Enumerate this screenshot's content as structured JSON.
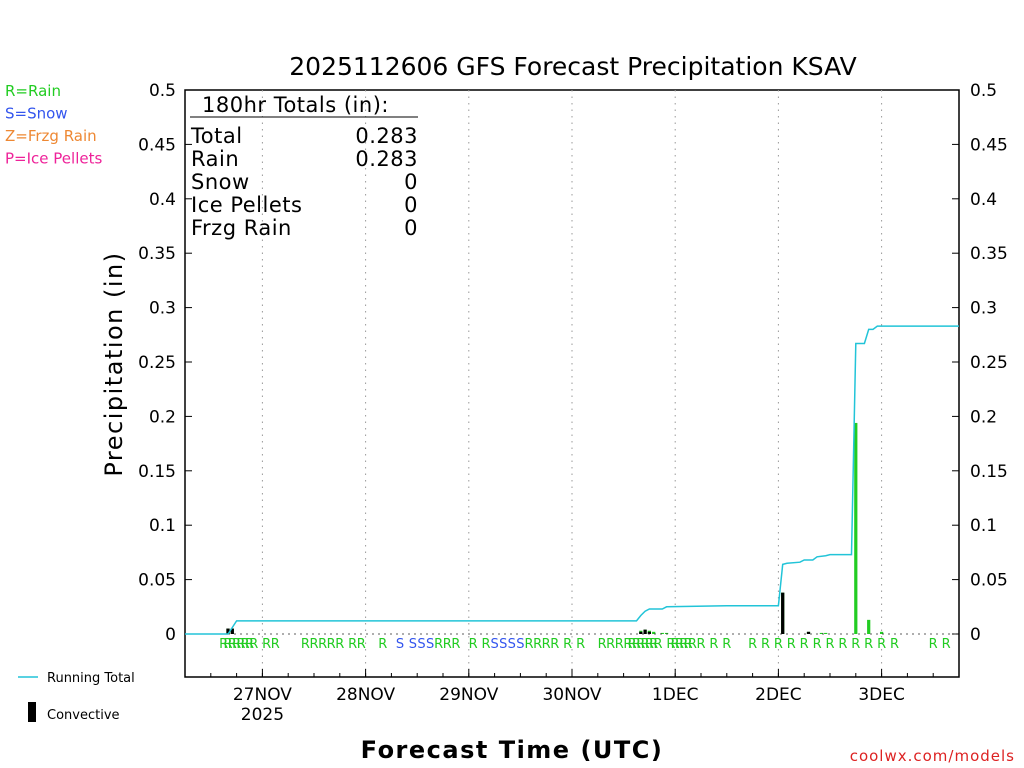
{
  "chart_data": {
    "type": "bar",
    "title": "2025112606 GFS Forecast Precipitation KSAV",
    "xlabel": "Forecast Time (UTC)",
    "ylabel": "Precipitation (in)",
    "ylim": [
      0,
      0.5
    ],
    "y_extra_below": -0.04,
    "yticks": [
      0,
      0.05,
      0.1,
      0.15,
      0.2,
      0.25,
      0.3,
      0.35,
      0.4,
      0.45,
      0.5
    ],
    "ytick_labels": [
      "0",
      "0.05",
      "0.1",
      "0.15",
      "0.2",
      "0.25",
      "0.3",
      "0.35",
      "0.4",
      "0.45",
      "0.5"
    ],
    "xlim_hours": [
      0,
      180
    ],
    "x_units": "forecast hours from 2025-11-26 06Z",
    "xticks": [
      {
        "hour": 18,
        "label": "27NOV",
        "sublabel": "2025"
      },
      {
        "hour": 42,
        "label": "28NOV"
      },
      {
        "hour": 66,
        "label": "29NOV"
      },
      {
        "hour": 90,
        "label": "30NOV"
      },
      {
        "hour": 114,
        "label": "1DEC"
      },
      {
        "hour": 138,
        "label": "2DEC"
      },
      {
        "hour": 162,
        "label": "3DEC"
      }
    ],
    "legend": {
      "precip_types": [
        {
          "label": "R=Rain",
          "color": "#22cc22"
        },
        {
          "label": "S=Snow",
          "color": "#3355ee"
        },
        {
          "label": "Z=Frzg Rain",
          "color": "#ee8833"
        },
        {
          "label": "P=Ice Pellets",
          "color": "#ee2299"
        }
      ],
      "running_total_label": "Running Total",
      "convective_label": "Convective"
    },
    "totals": {
      "header": "180hr Totals (in):",
      "rows": [
        {
          "label": "Total",
          "value": "0.283"
        },
        {
          "label": "Rain",
          "value": "0.283"
        },
        {
          "label": "Snow",
          "value": "0"
        },
        {
          "label": "Ice Pellets",
          "value": "0"
        },
        {
          "label": "Frzg Rain",
          "value": "0"
        }
      ]
    },
    "series": [
      {
        "name": "Running Total",
        "kind": "line",
        "color": "#22c4d8",
        "x": [
          0,
          10,
          11,
          12,
          105,
          106,
          107,
          108,
          111,
          112,
          126,
          138,
          139,
          140,
          143,
          144,
          146,
          147,
          149,
          150,
          155,
          156,
          158,
          159,
          160,
          161,
          180
        ],
        "y": [
          0,
          0,
          0.006,
          0.012,
          0.012,
          0.017,
          0.021,
          0.023,
          0.023,
          0.025,
          0.026,
          0.026,
          0.064,
          0.065,
          0.066,
          0.068,
          0.068,
          0.071,
          0.072,
          0.073,
          0.073,
          0.267,
          0.267,
          0.28,
          0.28,
          0.283,
          0.283
        ]
      },
      {
        "name": "Precipitation",
        "kind": "bar",
        "color": "#22cc22",
        "x": [
          10,
          11,
          106,
          107,
          108,
          109,
          111,
          112,
          139,
          145,
          148,
          149,
          156,
          159,
          162
        ],
        "y": [
          0.005,
          0.005,
          0.003,
          0.004,
          0.003,
          0.002,
          0.001,
          0.001,
          0.038,
          0.002,
          0.001,
          0.001,
          0.194,
          0.013,
          0.002
        ]
      },
      {
        "name": "Convective",
        "kind": "bar",
        "color": "#000000",
        "x": [
          10,
          11,
          106,
          107,
          108,
          139,
          145
        ],
        "y": [
          0.005,
          0.005,
          0.002,
          0.004,
          0.002,
          0.038,
          0.002
        ]
      }
    ],
    "ptype_codes": [
      {
        "hour": 9,
        "code": "R"
      },
      {
        "hour": 10,
        "code": "R"
      },
      {
        "hour": 11,
        "code": "R"
      },
      {
        "hour": 12,
        "code": "R"
      },
      {
        "hour": 13,
        "code": "R"
      },
      {
        "hour": 14,
        "code": "R"
      },
      {
        "hour": 15,
        "code": "R"
      },
      {
        "hour": 16,
        "code": "R"
      },
      {
        "hour": 19,
        "code": "R"
      },
      {
        "hour": 21,
        "code": "R"
      },
      {
        "hour": 28,
        "code": "R"
      },
      {
        "hour": 30,
        "code": "R"
      },
      {
        "hour": 32,
        "code": "R"
      },
      {
        "hour": 34,
        "code": "R"
      },
      {
        "hour": 36,
        "code": "R"
      },
      {
        "hour": 39,
        "code": "R"
      },
      {
        "hour": 41,
        "code": "R"
      },
      {
        "hour": 46,
        "code": "R"
      },
      {
        "hour": 50,
        "code": "S"
      },
      {
        "hour": 53,
        "code": "S"
      },
      {
        "hour": 55,
        "code": "S"
      },
      {
        "hour": 57,
        "code": "S"
      },
      {
        "hour": 59,
        "code": "R"
      },
      {
        "hour": 61,
        "code": "R"
      },
      {
        "hour": 63,
        "code": "R"
      },
      {
        "hour": 67,
        "code": "R"
      },
      {
        "hour": 70,
        "code": "R"
      },
      {
        "hour": 72,
        "code": "S"
      },
      {
        "hour": 74,
        "code": "S"
      },
      {
        "hour": 76,
        "code": "S"
      },
      {
        "hour": 78,
        "code": "S"
      },
      {
        "hour": 80,
        "code": "R"
      },
      {
        "hour": 82,
        "code": "R"
      },
      {
        "hour": 84,
        "code": "R"
      },
      {
        "hour": 86,
        "code": "R"
      },
      {
        "hour": 89,
        "code": "R"
      },
      {
        "hour": 92,
        "code": "R"
      },
      {
        "hour": 97,
        "code": "R"
      },
      {
        "hour": 99,
        "code": "R"
      },
      {
        "hour": 101,
        "code": "R"
      },
      {
        "hour": 103,
        "code": "R"
      },
      {
        "hour": 104,
        "code": "R"
      },
      {
        "hour": 105,
        "code": "R"
      },
      {
        "hour": 106,
        "code": "R"
      },
      {
        "hour": 107,
        "code": "R"
      },
      {
        "hour": 108,
        "code": "R"
      },
      {
        "hour": 109,
        "code": "R"
      },
      {
        "hour": 110,
        "code": "R"
      },
      {
        "hour": 113,
        "code": "R"
      },
      {
        "hour": 114,
        "code": "R"
      },
      {
        "hour": 115,
        "code": "R"
      },
      {
        "hour": 116,
        "code": "R"
      },
      {
        "hour": 117,
        "code": "R"
      },
      {
        "hour": 118,
        "code": "R"
      },
      {
        "hour": 120,
        "code": "R"
      },
      {
        "hour": 123,
        "code": "R"
      },
      {
        "hour": 126,
        "code": "R"
      },
      {
        "hour": 132,
        "code": "R"
      },
      {
        "hour": 135,
        "code": "R"
      },
      {
        "hour": 138,
        "code": "R"
      },
      {
        "hour": 141,
        "code": "R"
      },
      {
        "hour": 144,
        "code": "R"
      },
      {
        "hour": 147,
        "code": "R"
      },
      {
        "hour": 150,
        "code": "R"
      },
      {
        "hour": 153,
        "code": "R"
      },
      {
        "hour": 156,
        "code": "R"
      },
      {
        "hour": 159,
        "code": "R"
      },
      {
        "hour": 162,
        "code": "R"
      },
      {
        "hour": 165,
        "code": "R"
      },
      {
        "hour": 174,
        "code": "R"
      },
      {
        "hour": 177,
        "code": "R"
      }
    ],
    "code_colors": {
      "R": "#22cc22",
      "S": "#3355ee",
      "Z": "#ee8833",
      "P": "#ee2299"
    },
    "grid": "vertical dotted at day boundaries"
  },
  "credit": "coolwx.com/models"
}
